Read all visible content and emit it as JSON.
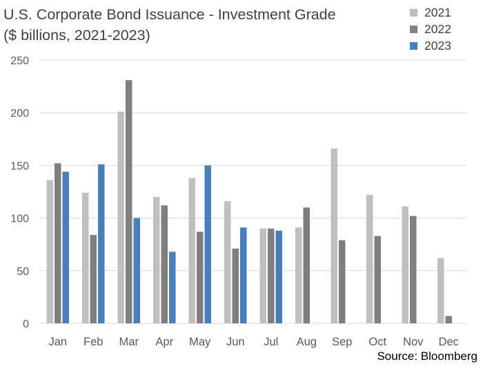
{
  "title": {
    "line1": "U.S. Corporate Bond Issuance - Investment Grade",
    "line2": "($ billions, 2021-2023)"
  },
  "source": "Source: Bloomberg",
  "chart_data": {
    "type": "bar",
    "title": "U.S. Corporate Bond Issuance - Investment Grade ($ billions, 2021-2023)",
    "xlabel": "",
    "ylabel": "",
    "ylim": [
      0,
      250
    ],
    "yticks": [
      0,
      50,
      100,
      150,
      200,
      250
    ],
    "grid": true,
    "legend_position": "top-right",
    "categories": [
      "Jan",
      "Feb",
      "Mar",
      "Apr",
      "May",
      "Jun",
      "Jul",
      "Aug",
      "Sep",
      "Oct",
      "Nov",
      "Dec"
    ],
    "series": [
      {
        "name": "2021",
        "color": "#BFBFBF",
        "values": [
          136,
          124,
          201,
          120,
          138,
          116,
          90,
          91,
          166,
          122,
          111,
          62
        ]
      },
      {
        "name": "2022",
        "color": "#7F7F7F",
        "values": [
          152,
          84,
          231,
          112,
          87,
          71,
          90,
          110,
          79,
          83,
          102,
          7
        ]
      },
      {
        "name": "2023",
        "color": "#4A7EBB",
        "values": [
          144,
          151,
          100,
          68,
          150,
          91,
          88,
          null,
          null,
          null,
          null,
          null
        ]
      }
    ]
  }
}
